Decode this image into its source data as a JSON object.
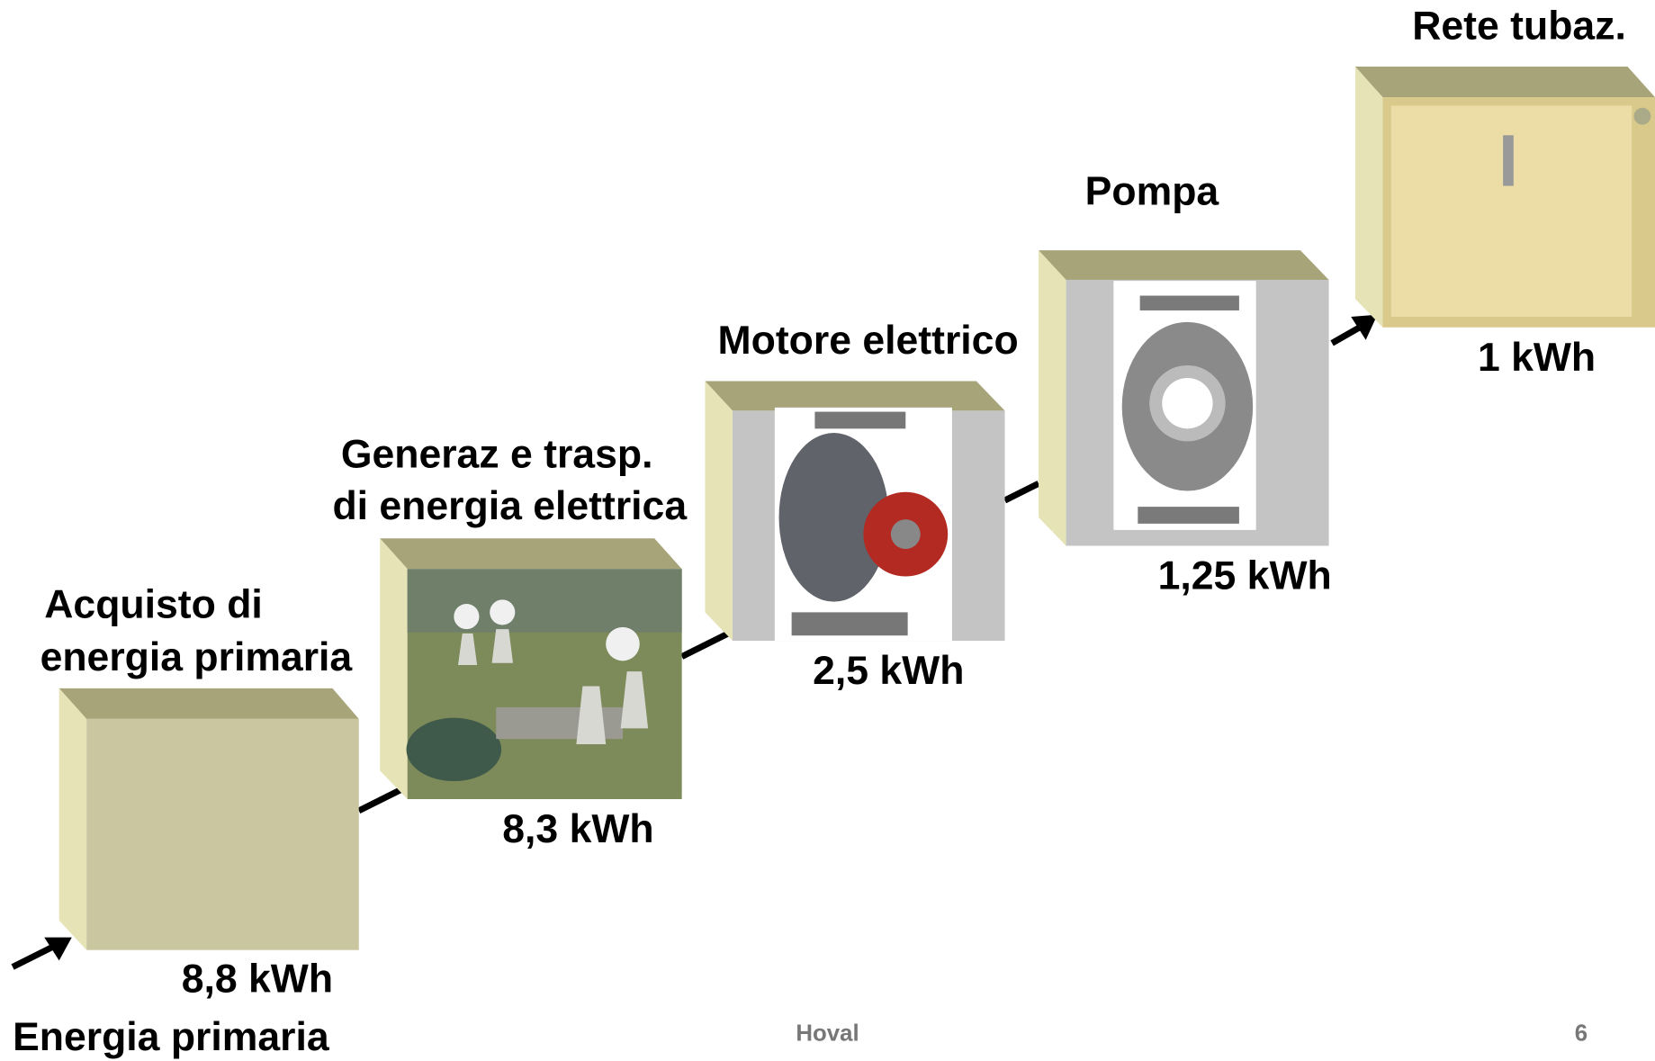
{
  "start_label": "Energia primaria",
  "stages": [
    {
      "label": [
        "Acquisto di",
        "energia primaria"
      ],
      "energy": "8,8 kWh"
    },
    {
      "label": [
        "Generaz e trasp.",
        "di energia elettrica"
      ],
      "energy": "8,3 kWh"
    },
    {
      "label": [
        "Motore elettrico"
      ],
      "energy": "2,5 kWh"
    },
    {
      "label": [
        "Pompa"
      ],
      "energy": "1,25 kWh"
    },
    {
      "label": [
        "Rete tubaz."
      ],
      "energy": "1 kWh"
    }
  ],
  "footer": {
    "brand": "Hoval",
    "page": "6"
  }
}
